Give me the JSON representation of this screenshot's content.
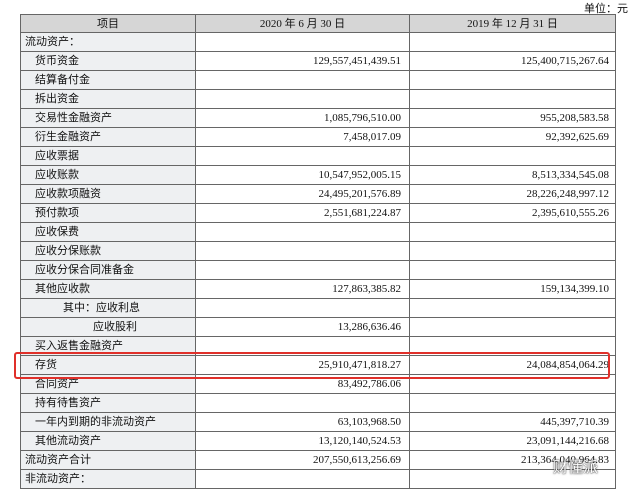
{
  "unit": "单位：元",
  "watermark": "财懂派",
  "table": {
    "header": [
      "项目",
      "2020 年 6 月 30 日",
      "2019 年 12 月 31 日"
    ],
    "rows": [
      [
        "流动资产：",
        null,
        null
      ],
      [
        "货币资金",
        "129,557,451,439.51",
        "125,400,715,267.64"
      ],
      [
        "结算备付金",
        null,
        null
      ],
      [
        "拆出资金",
        null,
        null
      ],
      [
        "交易性金融资产",
        "1,085,796,510.00",
        "955,208,583.58"
      ],
      [
        "衍生金融资产",
        "7,458,017.09",
        "92,392,625.69"
      ],
      [
        "应收票据",
        null,
        null
      ],
      [
        "应收账款",
        "10,547,952,005.15",
        "8,513,334,545.08"
      ],
      [
        "应收款项融资",
        "24,495,201,576.89",
        "28,226,248,997.12"
      ],
      [
        "预付款项",
        "2,551,681,224.87",
        "2,395,610,555.26"
      ],
      [
        "应收保费",
        null,
        null
      ],
      [
        "应收分保账款",
        null,
        null
      ],
      [
        "应收分保合同准备金",
        null,
        null
      ],
      [
        "其他应收款",
        "127,863,385.82",
        "159,134,399.10"
      ],
      [
        "其中：应收利息",
        null,
        null
      ],
      [
        "应收股利",
        "13,286,636.46",
        null
      ],
      [
        "买入返售金融资产",
        null,
        null
      ],
      [
        "存货",
        "25,910,471,818.27",
        "24,084,854,064.29"
      ],
      [
        "合同资产",
        "83,492,786.06",
        null
      ],
      [
        "持有待售资产",
        null,
        null
      ],
      [
        "一年内到期的非流动资产",
        "63,103,968.50",
        "445,397,710.39"
      ],
      [
        "其他流动资产",
        "13,120,140,524.53",
        "23,091,144,216.68"
      ],
      [
        "流动资产合计",
        "207,550,613,256.69",
        "213,364,040,964.83"
      ],
      [
        "非流动资产：",
        null,
        null
      ]
    ]
  }
}
